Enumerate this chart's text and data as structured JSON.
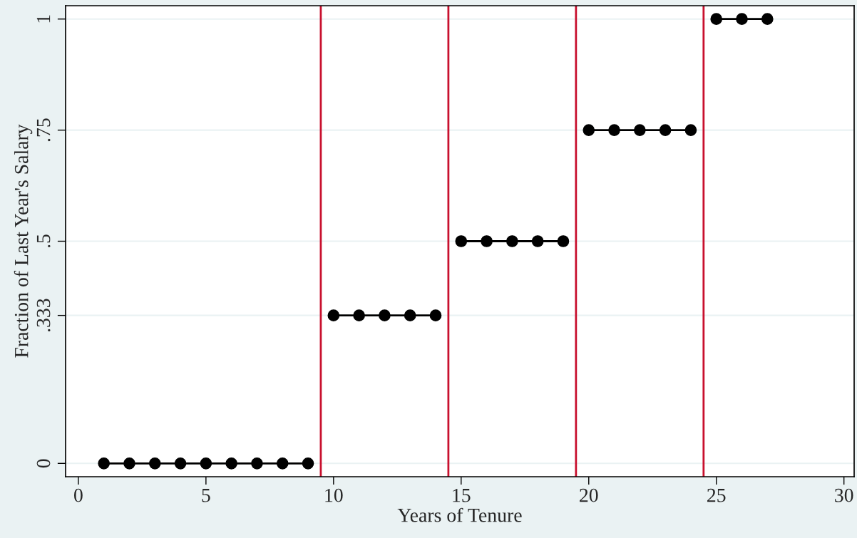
{
  "chart_data": {
    "type": "line",
    "xlabel": "Years of Tenure",
    "ylabel": "Fraction of Last Year's Salary",
    "series": [
      {
        "color": "#000000",
        "x": [
          1,
          2,
          3,
          4,
          5,
          6,
          7,
          8,
          9
        ],
        "values": [
          0,
          0,
          0,
          0,
          0,
          0,
          0,
          0,
          0
        ]
      },
      {
        "color": "#000000",
        "x": [
          10,
          11,
          12,
          13,
          14
        ],
        "values": [
          0.333,
          0.333,
          0.333,
          0.333,
          0.333
        ]
      },
      {
        "color": "#000000",
        "x": [
          15,
          16,
          17,
          18,
          19
        ],
        "values": [
          0.5,
          0.5,
          0.5,
          0.5,
          0.5
        ]
      },
      {
        "color": "#000000",
        "x": [
          20,
          21,
          22,
          23,
          24
        ],
        "values": [
          0.75,
          0.75,
          0.75,
          0.75,
          0.75
        ]
      },
      {
        "color": "#000000",
        "x": [
          25,
          26,
          27
        ],
        "values": [
          1,
          1,
          1
        ]
      }
    ],
    "marker": "circle",
    "line_style": "solid",
    "grid": "y",
    "legend": false,
    "xlim": [
      -0.5,
      30.4
    ],
    "xticks": [
      0,
      5,
      10,
      15,
      20,
      25,
      30
    ],
    "ylim": [
      -0.03,
      1.03
    ],
    "yticks": [
      0,
      {
        "value": 0.333,
        "label": ".333"
      },
      {
        "value": 0.5,
        "label": ".5"
      },
      {
        "value": 0.75,
        "label": ".75"
      },
      1
    ],
    "ref_lines": [
      {
        "axis": "x",
        "value": 9.5,
        "color": "#c8102e"
      },
      {
        "axis": "x",
        "value": 14.5,
        "color": "#c8102e"
      },
      {
        "axis": "x",
        "value": 19.5,
        "color": "#c8102e"
      },
      {
        "axis": "x",
        "value": 24.5,
        "color": "#c8102e"
      }
    ]
  }
}
